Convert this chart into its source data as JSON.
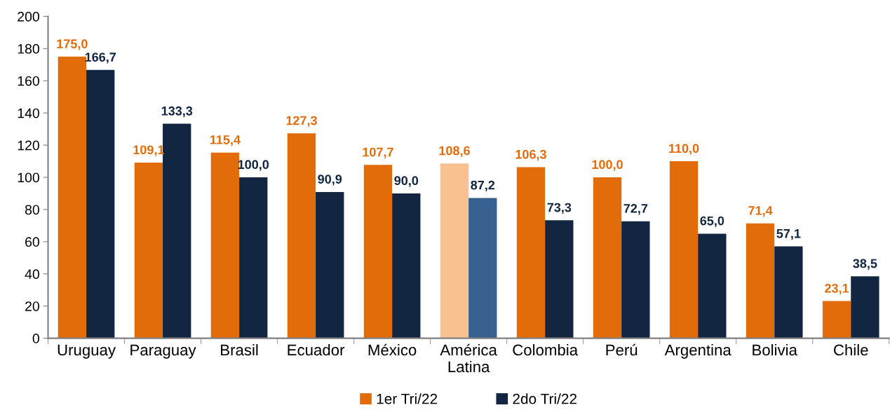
{
  "chart_data": {
    "type": "bar",
    "categories": [
      "Uruguay",
      "Paraguay",
      "Brasil",
      "Ecuador",
      "México",
      "América\nLatina",
      "Colombia",
      "Perú",
      "Argentina",
      "Bolivia",
      "Chile"
    ],
    "series": [
      {
        "name": "1er Tri/22",
        "color": "#e36c0a",
        "colors": [
          "#e36c0a",
          "#e36c0a",
          "#e36c0a",
          "#e36c0a",
          "#e36c0a",
          "#f9c090",
          "#e36c0a",
          "#e36c0a",
          "#e36c0a",
          "#e36c0a",
          "#e36c0a"
        ],
        "values": [
          175.0,
          109.1,
          115.4,
          127.3,
          107.7,
          108.6,
          106.3,
          100.0,
          110.0,
          71.4,
          23.1
        ],
        "value_labels": [
          "175,0",
          "109,1",
          "115,4",
          "127,3",
          "107,7",
          "108,6",
          "106,3",
          "100,0",
          "110,0",
          "71,4",
          "23,1"
        ]
      },
      {
        "name": "2do Tri/22",
        "color": "#132641",
        "colors": [
          "#132641",
          "#132641",
          "#132641",
          "#132641",
          "#132641",
          "#386192",
          "#132641",
          "#132641",
          "#132641",
          "#132641",
          "#132641"
        ],
        "values": [
          166.7,
          133.3,
          100.0,
          90.9,
          90.0,
          87.2,
          73.3,
          72.7,
          65.0,
          57.1,
          38.5
        ],
        "value_labels": [
          "166,7",
          "133,3",
          "100,0",
          "90,9",
          "90,0",
          "87,2",
          "73,3",
          "72,7",
          "65,0",
          "57,1",
          "38,5"
        ]
      }
    ],
    "ylim": [
      0,
      200
    ],
    "yticks": [
      0,
      20,
      40,
      60,
      80,
      100,
      120,
      140,
      160,
      180,
      200
    ],
    "grid": false,
    "legend": "bottom"
  }
}
